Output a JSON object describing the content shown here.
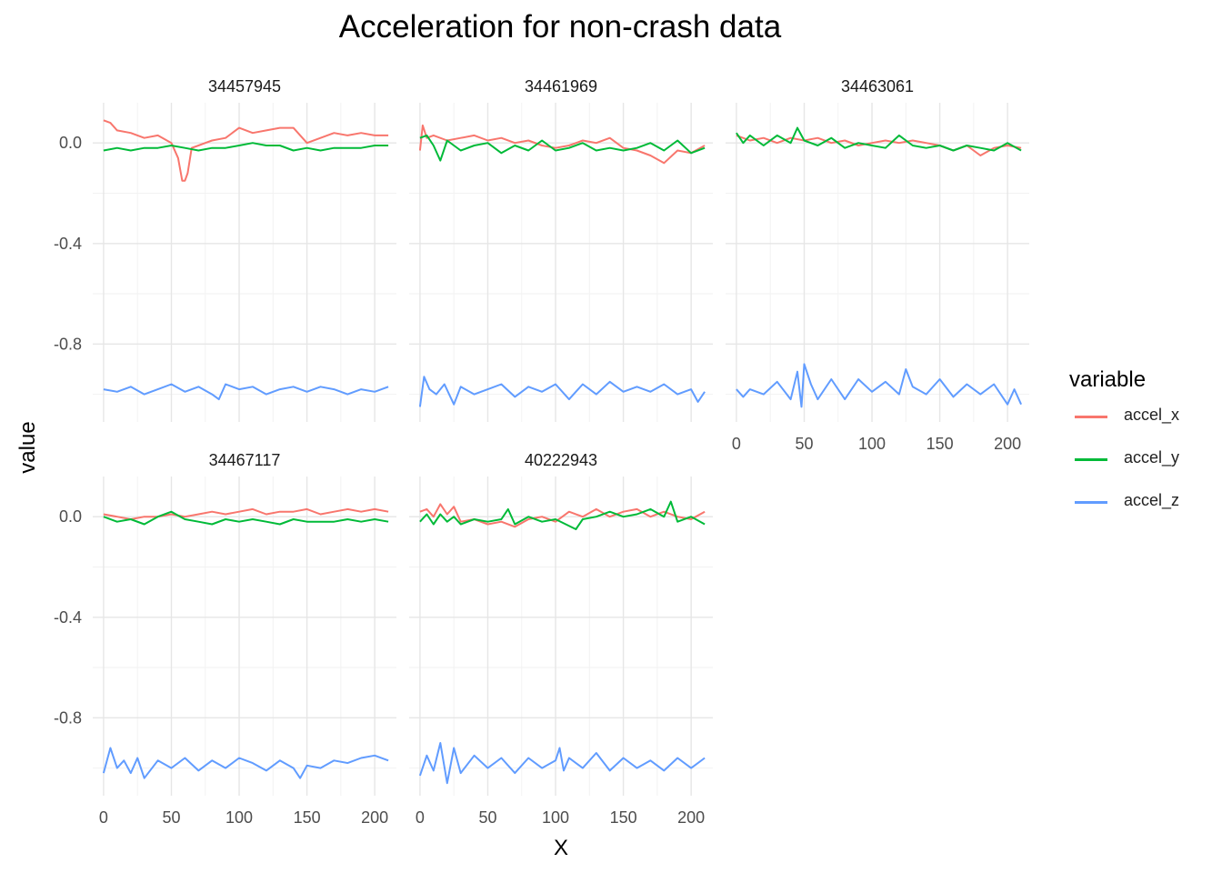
{
  "chart_data": {
    "type": "line",
    "title": "Acceleration for non-crash data",
    "xlabel": "X",
    "ylabel": "value",
    "xlim": [
      -8,
      216
    ],
    "ylim": [
      -1.11,
      0.16
    ],
    "x_ticks": [
      0,
      50,
      100,
      150,
      200
    ],
    "x_tick_labels": [
      "0",
      "50",
      "100",
      "150",
      "200"
    ],
    "y_ticks": [
      0.0,
      -0.4,
      -0.8
    ],
    "y_tick_labels": [
      "0.0",
      "-0.4",
      "-0.8"
    ],
    "grid": true,
    "legend": {
      "title": "variable",
      "position": "right",
      "entries": [
        "accel_x",
        "accel_y",
        "accel_z"
      ]
    },
    "series_colors": {
      "accel_x": "#F8766D",
      "accel_y": "#00BA38",
      "accel_z": "#619CFF"
    },
    "facets": [
      {
        "label": "34457945",
        "series": [
          {
            "name": "accel_x",
            "x": [
              0,
              5,
              10,
              20,
              30,
              40,
              50,
              55,
              58,
              60,
              62,
              65,
              70,
              75,
              80,
              90,
              100,
              110,
              120,
              130,
              140,
              150,
              160,
              170,
              180,
              190,
              200,
              210
            ],
            "values": [
              0.09,
              0.08,
              0.05,
              0.04,
              0.02,
              0.03,
              0.0,
              -0.06,
              -0.15,
              -0.15,
              -0.12,
              -0.02,
              -0.01,
              0.0,
              0.01,
              0.02,
              0.06,
              0.04,
              0.05,
              0.06,
              0.06,
              0.0,
              0.02,
              0.04,
              0.03,
              0.04,
              0.03,
              0.03
            ]
          },
          {
            "name": "accel_y",
            "x": [
              0,
              10,
              20,
              30,
              40,
              50,
              60,
              70,
              80,
              90,
              100,
              110,
              120,
              130,
              140,
              150,
              160,
              170,
              180,
              190,
              200,
              210
            ],
            "values": [
              -0.03,
              -0.02,
              -0.03,
              -0.02,
              -0.02,
              -0.01,
              -0.02,
              -0.03,
              -0.02,
              -0.02,
              -0.01,
              0.0,
              -0.01,
              -0.01,
              -0.03,
              -0.02,
              -0.03,
              -0.02,
              -0.02,
              -0.02,
              -0.01,
              -0.01
            ]
          },
          {
            "name": "accel_z",
            "x": [
              0,
              10,
              20,
              30,
              40,
              50,
              60,
              70,
              80,
              85,
              90,
              100,
              110,
              120,
              130,
              140,
              150,
              160,
              170,
              180,
              190,
              200,
              210
            ],
            "values": [
              -0.98,
              -0.99,
              -0.97,
              -1.0,
              -0.98,
              -0.96,
              -0.99,
              -0.97,
              -1.0,
              -1.02,
              -0.96,
              -0.98,
              -0.97,
              -1.0,
              -0.98,
              -0.97,
              -0.99,
              -0.97,
              -0.98,
              -1.0,
              -0.98,
              -0.99,
              -0.97
            ]
          }
        ]
      },
      {
        "label": "34461969",
        "series": [
          {
            "name": "accel_x",
            "x": [
              0,
              2,
              5,
              10,
              20,
              30,
              40,
              50,
              60,
              70,
              80,
              90,
              100,
              110,
              120,
              130,
              140,
              150,
              160,
              170,
              180,
              190,
              200,
              210
            ],
            "values": [
              -0.03,
              0.07,
              0.02,
              0.03,
              0.01,
              0.02,
              0.03,
              0.01,
              0.02,
              0.0,
              0.01,
              -0.01,
              -0.02,
              -0.01,
              0.01,
              0.0,
              0.02,
              -0.02,
              -0.03,
              -0.05,
              -0.08,
              -0.03,
              -0.04,
              -0.01
            ]
          },
          {
            "name": "accel_y",
            "x": [
              0,
              5,
              10,
              15,
              20,
              30,
              40,
              50,
              60,
              70,
              80,
              90,
              100,
              110,
              120,
              130,
              140,
              150,
              160,
              170,
              180,
              190,
              200,
              210
            ],
            "values": [
              0.02,
              0.03,
              -0.01,
              -0.07,
              0.01,
              -0.03,
              -0.01,
              0.0,
              -0.04,
              -0.01,
              -0.03,
              0.01,
              -0.03,
              -0.02,
              0.0,
              -0.03,
              -0.02,
              -0.03,
              -0.02,
              0.0,
              -0.03,
              0.01,
              -0.04,
              -0.02
            ]
          },
          {
            "name": "accel_z",
            "x": [
              0,
              3,
              7,
              12,
              18,
              25,
              30,
              40,
              50,
              60,
              70,
              80,
              90,
              100,
              110,
              120,
              130,
              140,
              150,
              160,
              170,
              180,
              190,
              200,
              205,
              210
            ],
            "values": [
              -1.05,
              -0.93,
              -0.98,
              -1.0,
              -0.96,
              -1.04,
              -0.97,
              -1.0,
              -0.98,
              -0.96,
              -1.01,
              -0.97,
              -0.99,
              -0.96,
              -1.02,
              -0.96,
              -1.0,
              -0.95,
              -0.99,
              -0.97,
              -0.99,
              -0.96,
              -1.0,
              -0.98,
              -1.03,
              -0.99
            ]
          }
        ]
      },
      {
        "label": "34463061",
        "series": [
          {
            "name": "accel_x",
            "x": [
              0,
              10,
              20,
              30,
              40,
              50,
              60,
              70,
              80,
              90,
              100,
              110,
              120,
              130,
              140,
              150,
              160,
              170,
              180,
              190,
              200,
              210
            ],
            "values": [
              0.03,
              0.01,
              0.02,
              0.0,
              0.02,
              0.01,
              0.02,
              0.0,
              0.01,
              -0.01,
              0.0,
              0.01,
              0.0,
              0.01,
              0.0,
              -0.01,
              -0.03,
              -0.01,
              -0.05,
              -0.02,
              -0.01,
              -0.02
            ]
          },
          {
            "name": "accel_y",
            "x": [
              0,
              5,
              10,
              20,
              30,
              40,
              45,
              50,
              60,
              70,
              80,
              90,
              100,
              110,
              120,
              130,
              140,
              150,
              160,
              170,
              180,
              190,
              200,
              210
            ],
            "values": [
              0.04,
              0.0,
              0.03,
              -0.01,
              0.03,
              0.0,
              0.06,
              0.01,
              -0.01,
              0.02,
              -0.02,
              0.0,
              -0.01,
              -0.02,
              0.03,
              -0.01,
              -0.02,
              -0.01,
              -0.03,
              -0.01,
              -0.02,
              -0.03,
              0.0,
              -0.03
            ]
          },
          {
            "name": "accel_z",
            "x": [
              0,
              5,
              10,
              20,
              30,
              40,
              45,
              48,
              50,
              55,
              60,
              70,
              80,
              90,
              100,
              110,
              120,
              125,
              130,
              140,
              150,
              160,
              170,
              180,
              190,
              200,
              205,
              210
            ],
            "values": [
              -0.98,
              -1.01,
              -0.98,
              -1.0,
              -0.95,
              -1.02,
              -0.91,
              -1.05,
              -0.88,
              -0.96,
              -1.02,
              -0.94,
              -1.02,
              -0.94,
              -0.99,
              -0.95,
              -1.0,
              -0.9,
              -0.97,
              -1.0,
              -0.94,
              -1.01,
              -0.96,
              -1.0,
              -0.96,
              -1.04,
              -0.98,
              -1.04
            ]
          }
        ]
      },
      {
        "label": "34467117",
        "series": [
          {
            "name": "accel_x",
            "x": [
              0,
              10,
              20,
              30,
              40,
              50,
              60,
              70,
              80,
              90,
              100,
              110,
              120,
              130,
              140,
              150,
              160,
              170,
              180,
              190,
              200,
              210
            ],
            "values": [
              0.01,
              0.0,
              -0.01,
              0.0,
              0.0,
              0.01,
              0.0,
              0.01,
              0.02,
              0.01,
              0.02,
              0.03,
              0.01,
              0.02,
              0.02,
              0.03,
              0.01,
              0.02,
              0.03,
              0.02,
              0.03,
              0.02
            ]
          },
          {
            "name": "accel_y",
            "x": [
              0,
              10,
              20,
              30,
              40,
              50,
              60,
              70,
              80,
              90,
              100,
              110,
              120,
              130,
              140,
              150,
              160,
              170,
              180,
              190,
              200,
              210
            ],
            "values": [
              0.0,
              -0.02,
              -0.01,
              -0.03,
              0.0,
              0.02,
              -0.01,
              -0.02,
              -0.03,
              -0.01,
              -0.02,
              -0.01,
              -0.02,
              -0.03,
              -0.01,
              -0.02,
              -0.02,
              -0.02,
              -0.01,
              -0.02,
              -0.01,
              -0.02
            ]
          },
          {
            "name": "accel_z",
            "x": [
              0,
              3,
              5,
              10,
              15,
              20,
              25,
              30,
              40,
              50,
              60,
              70,
              80,
              90,
              100,
              110,
              120,
              130,
              140,
              145,
              150,
              160,
              170,
              180,
              190,
              200,
              210
            ],
            "values": [
              -1.02,
              -0.96,
              -0.92,
              -1.0,
              -0.97,
              -1.02,
              -0.96,
              -1.04,
              -0.97,
              -1.0,
              -0.96,
              -1.01,
              -0.97,
              -1.0,
              -0.96,
              -0.98,
              -1.01,
              -0.97,
              -1.0,
              -1.04,
              -0.99,
              -1.0,
              -0.97,
              -0.98,
              -0.96,
              -0.95,
              -0.97
            ]
          }
        ]
      },
      {
        "label": "40222943",
        "series": [
          {
            "name": "accel_x",
            "x": [
              0,
              5,
              10,
              15,
              20,
              25,
              30,
              40,
              50,
              60,
              70,
              80,
              90,
              100,
              110,
              120,
              130,
              140,
              150,
              160,
              170,
              180,
              190,
              200,
              210
            ],
            "values": [
              0.02,
              0.03,
              0.0,
              0.05,
              0.01,
              0.04,
              -0.02,
              -0.01,
              -0.03,
              -0.02,
              -0.04,
              -0.01,
              0.0,
              -0.02,
              0.02,
              0.0,
              0.03,
              0.0,
              0.02,
              0.03,
              0.0,
              0.02,
              0.0,
              -0.01,
              0.02
            ]
          },
          {
            "name": "accel_y",
            "x": [
              0,
              5,
              10,
              15,
              20,
              25,
              30,
              40,
              50,
              60,
              65,
              70,
              80,
              90,
              100,
              115,
              120,
              130,
              140,
              150,
              160,
              170,
              180,
              185,
              190,
              200,
              210
            ],
            "values": [
              -0.02,
              0.01,
              -0.03,
              0.01,
              -0.02,
              0.0,
              -0.03,
              -0.01,
              -0.02,
              -0.01,
              0.03,
              -0.03,
              0.0,
              -0.02,
              -0.01,
              -0.05,
              -0.01,
              0.0,
              0.02,
              0.0,
              0.01,
              0.03,
              0.0,
              0.06,
              -0.02,
              0.0,
              -0.03
            ]
          },
          {
            "name": "accel_z",
            "x": [
              0,
              5,
              10,
              15,
              20,
              25,
              30,
              40,
              50,
              60,
              70,
              80,
              90,
              100,
              103,
              106,
              110,
              120,
              130,
              140,
              150,
              160,
              170,
              180,
              190,
              200,
              210
            ],
            "values": [
              -1.03,
              -0.95,
              -1.01,
              -0.9,
              -1.06,
              -0.92,
              -1.02,
              -0.95,
              -1.0,
              -0.96,
              -1.02,
              -0.96,
              -1.0,
              -0.97,
              -0.92,
              -1.01,
              -0.96,
              -1.0,
              -0.94,
              -1.01,
              -0.96,
              -1.0,
              -0.97,
              -1.01,
              -0.96,
              -1.0,
              -0.96
            ]
          }
        ]
      }
    ]
  }
}
